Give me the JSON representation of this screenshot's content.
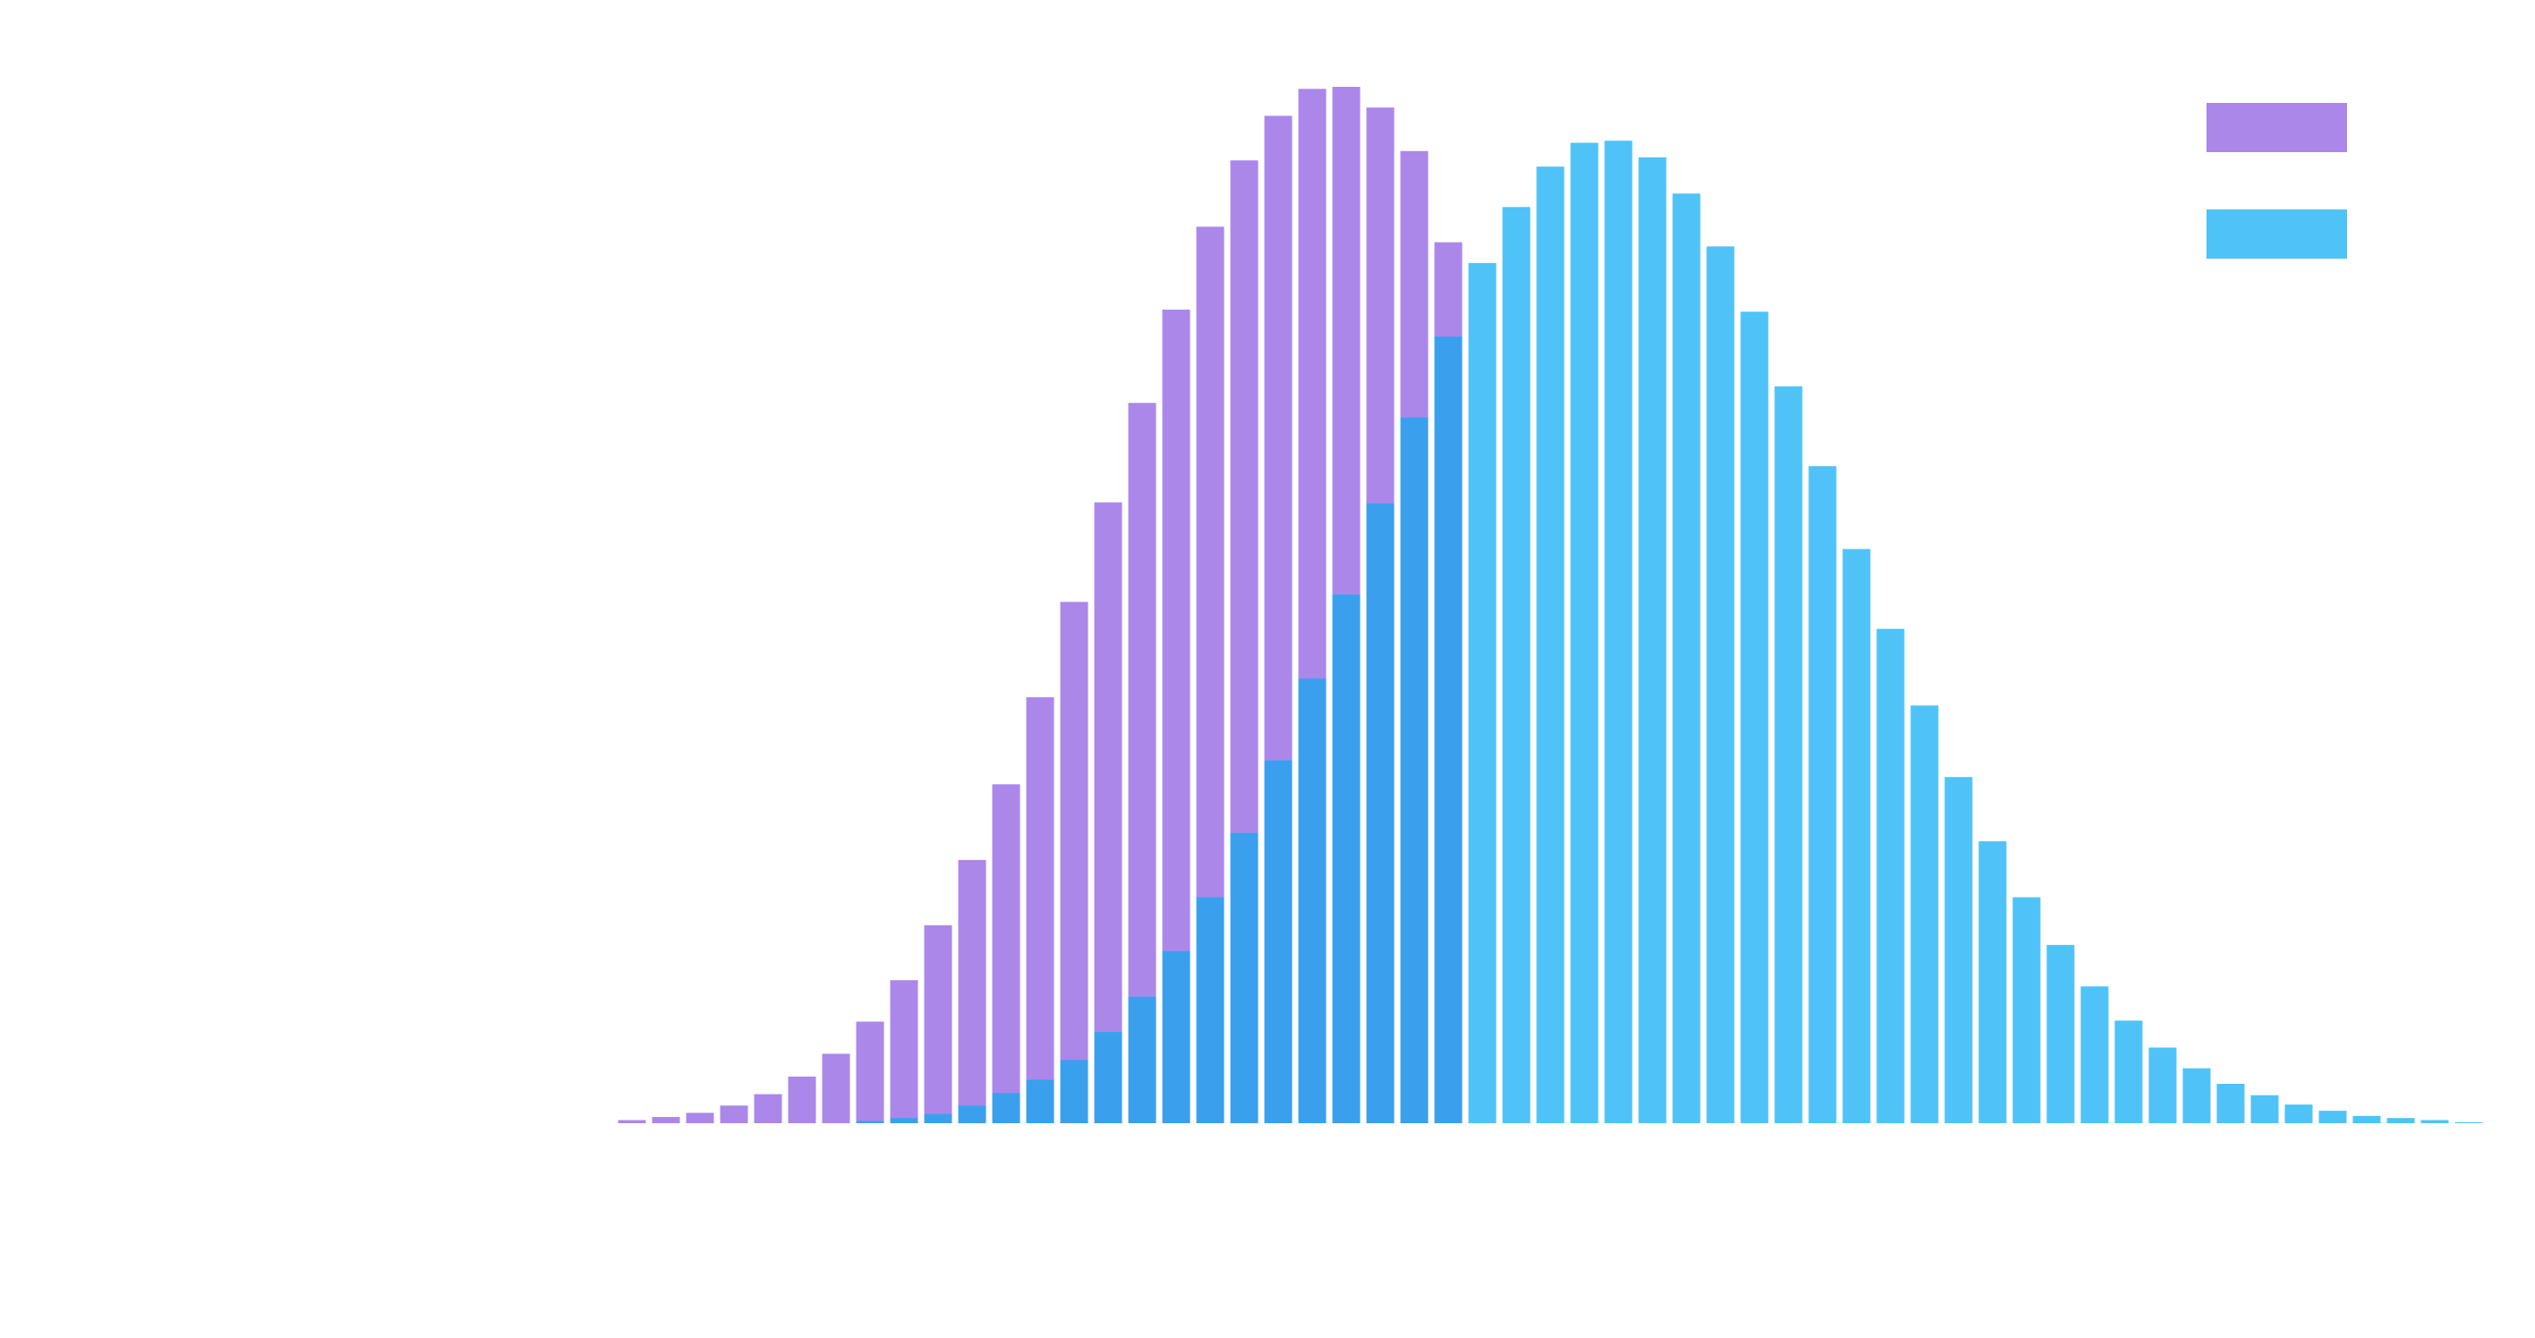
{
  "chart_data": {
    "type": "bar",
    "bar_mode": "overlay",
    "grid": false,
    "axes_visible": false,
    "legend": {
      "placement": "top-right",
      "entries": [
        {
          "series_index": 0,
          "label": ""
        },
        {
          "series_index": 1,
          "label": ""
        }
      ]
    },
    "x": [
      0,
      1,
      2,
      3,
      4,
      5,
      6,
      7,
      8,
      9,
      10,
      11,
      12,
      13,
      14,
      15,
      16,
      17,
      18,
      19,
      20,
      21,
      22,
      23,
      24,
      25,
      26,
      27,
      28,
      29,
      30,
      31,
      32,
      33,
      34,
      35,
      36,
      37,
      38,
      39,
      40,
      41,
      42,
      43,
      44,
      45,
      46,
      47,
      48,
      49,
      50,
      51,
      52,
      53,
      54,
      55
    ],
    "ylim": [
      0,
      100
    ],
    "series": [
      {
        "color": "#ab87ea",
        "values": [
          0.3,
          0.6,
          1.0,
          1.7,
          2.8,
          4.5,
          6.7,
          9.8,
          13.8,
          19.1,
          25.4,
          32.7,
          41.1,
          50.3,
          59.9,
          69.5,
          78.5,
          86.5,
          92.9,
          97.2,
          99.8,
          100.0,
          98.0,
          93.8,
          85.0,
          0,
          0,
          0,
          0,
          0,
          0,
          0,
          0,
          0,
          0,
          0,
          0,
          0,
          0,
          0,
          0,
          0,
          0,
          0,
          0,
          0,
          0,
          0,
          0,
          0,
          0,
          0,
          0,
          0,
          0,
          0
        ]
      },
      {
        "color": "#4fc3f7",
        "values": [
          0,
          0,
          0,
          0,
          0,
          0,
          0,
          0.2,
          0.5,
          0.9,
          1.7,
          2.9,
          4.2,
          6.1,
          8.8,
          12.2,
          16.6,
          21.8,
          28.0,
          35.0,
          42.9,
          51.0,
          59.8,
          68.1,
          75.9,
          83.0,
          88.4,
          92.3,
          94.6,
          94.8,
          93.2,
          89.7,
          84.6,
          78.3,
          71.1,
          63.4,
          55.4,
          47.7,
          40.3,
          33.4,
          27.2,
          21.8,
          17.2,
          13.2,
          9.9,
          7.3,
          5.3,
          3.8,
          2.7,
          1.8,
          1.2,
          0.7,
          0.5,
          0.3,
          0.1,
          0
        ]
      }
    ]
  }
}
